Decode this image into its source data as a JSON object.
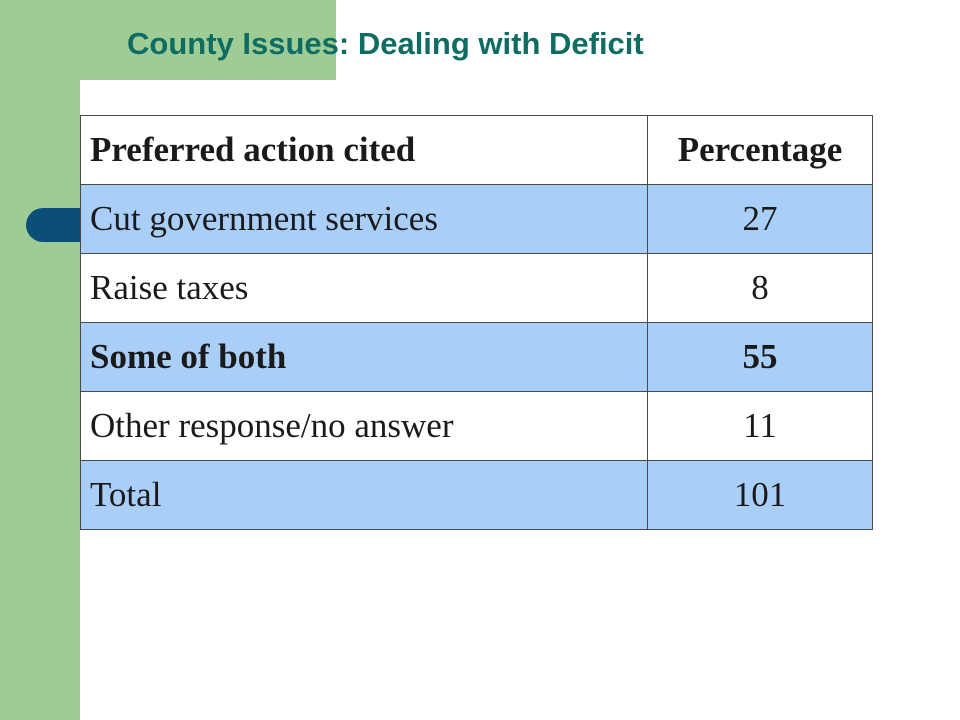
{
  "slide": {
    "title": "County Issues: Dealing with Deficit"
  },
  "table": {
    "headers": [
      "Preferred action cited",
      "Percentage"
    ],
    "rows": [
      {
        "action": "Cut government  services",
        "percentage": "27"
      },
      {
        "action": "Raise taxes",
        "percentage": "8"
      },
      {
        "action": "Some of both",
        "percentage": "55"
      },
      {
        "action": "Other response/no answer",
        "percentage": "11"
      },
      {
        "action": "Total",
        "percentage": "101"
      }
    ]
  },
  "colors": {
    "sidebar_green": "#9fcc94",
    "title_teal": "#0e6d63",
    "tab_navy": "#0b4f79",
    "row_blue": "#a9cef8"
  }
}
